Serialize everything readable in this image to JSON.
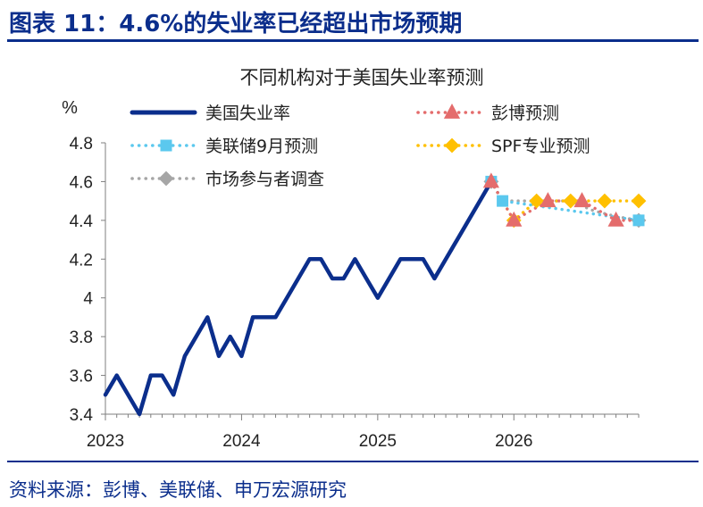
{
  "figure_title": "图表 11：4.6%的失业率已经超出市场预期",
  "source": "资料来源：彭博、美联储、申万宏源研究",
  "chart_data": {
    "type": "line",
    "title": "不同机构对于美国失业率预测",
    "ylabel": "%",
    "ylim": [
      3.4,
      4.8
    ],
    "y_ticks": [
      "3.4",
      "3.6",
      "3.8",
      "4",
      "4.2",
      "4.4",
      "4.6",
      "4.8"
    ],
    "x_ticks": [
      "2023",
      "2024",
      "2025",
      "2026"
    ],
    "xlim": [
      "2023-01",
      "2026-12"
    ],
    "grid": false,
    "legend": "top",
    "series": [
      {
        "name": "美国失业率",
        "style": "solid",
        "color": "#0B2E8C",
        "points": [
          [
            "2023-01",
            3.5
          ],
          [
            "2023-02",
            3.6
          ],
          [
            "2023-03",
            3.5
          ],
          [
            "2023-04",
            3.4
          ],
          [
            "2023-05",
            3.6
          ],
          [
            "2023-06",
            3.6
          ],
          [
            "2023-07",
            3.5
          ],
          [
            "2023-08",
            3.7
          ],
          [
            "2023-09",
            3.8
          ],
          [
            "2023-10",
            3.9
          ],
          [
            "2023-11",
            3.7
          ],
          [
            "2023-12",
            3.8
          ],
          [
            "2024-01",
            3.7
          ],
          [
            "2024-02",
            3.9
          ],
          [
            "2024-03",
            3.9
          ],
          [
            "2024-04",
            3.9
          ],
          [
            "2024-05",
            4.0
          ],
          [
            "2024-06",
            4.1
          ],
          [
            "2024-07",
            4.2
          ],
          [
            "2024-08",
            4.2
          ],
          [
            "2024-09",
            4.1
          ],
          [
            "2024-10",
            4.1
          ],
          [
            "2024-11",
            4.2
          ],
          [
            "2024-12",
            4.1
          ],
          [
            "2025-01",
            4.0
          ],
          [
            "2025-02",
            4.1
          ],
          [
            "2025-03",
            4.2
          ],
          [
            "2025-04",
            4.2
          ],
          [
            "2025-05",
            4.2
          ],
          [
            "2025-06",
            4.1
          ],
          [
            "2025-07",
            4.2
          ],
          [
            "2025-08",
            4.3
          ],
          [
            "2025-09",
            4.4
          ],
          [
            "2025-10",
            4.5
          ],
          [
            "2025-11",
            4.6
          ]
        ]
      },
      {
        "name": "彭博预测",
        "style": "dotted",
        "color": "#E46C6C",
        "marker": "triangle",
        "points": [
          [
            "2025-11",
            4.6
          ],
          [
            "2026-01",
            4.4
          ],
          [
            "2026-04",
            4.5
          ],
          [
            "2026-07",
            4.5
          ],
          [
            "2026-10",
            4.4
          ],
          [
            "2026-12",
            4.4
          ]
        ],
        "marker_points": [
          "2025-11",
          "2026-01",
          "2026-04",
          "2026-07",
          "2026-10"
        ]
      },
      {
        "name": "美联储9月预测",
        "style": "dotted",
        "color": "#5BC8EE",
        "marker": "square",
        "points": [
          [
            "2025-11",
            4.6
          ],
          [
            "2025-12",
            4.5
          ],
          [
            "2026-12",
            4.4
          ]
        ],
        "marker_points": [
          "2025-11",
          "2025-12",
          "2026-12"
        ]
      },
      {
        "name": "SPF专业预测",
        "style": "dotted",
        "color": "#FFC000",
        "marker": "diamond",
        "points": [
          [
            "2025-11",
            4.6
          ],
          [
            "2026-01",
            4.4
          ],
          [
            "2026-03",
            4.5
          ],
          [
            "2026-06",
            4.5
          ],
          [
            "2026-09",
            4.5
          ],
          [
            "2026-12",
            4.5
          ]
        ],
        "marker_points": [
          "2026-01",
          "2026-03",
          "2026-06",
          "2026-09",
          "2026-12"
        ]
      },
      {
        "name": "市场参与者调查",
        "style": "dotted",
        "color": "#A6A6A6",
        "marker": "diamond",
        "points": [
          [
            "2025-11",
            4.6
          ],
          [
            "2025-12",
            4.5
          ],
          [
            "2026-02",
            4.5
          ],
          [
            "2026-04",
            4.5
          ],
          [
            "2026-06",
            4.5
          ],
          [
            "2026-08",
            4.45
          ],
          [
            "2026-10",
            4.42
          ],
          [
            "2026-12",
            4.4
          ]
        ],
        "marker_points": [
          "2025-11",
          "2026-12"
        ]
      }
    ]
  }
}
